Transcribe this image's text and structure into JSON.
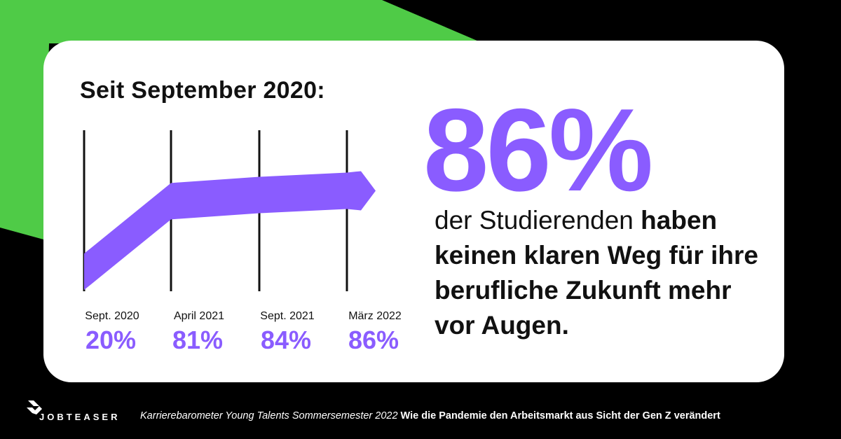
{
  "colors": {
    "background": "#000000",
    "green_accent": "#4fcb47",
    "purple_accent": "#8a5cff",
    "text_dark": "#111111",
    "gridline": "#111111"
  },
  "chart_data": {
    "type": "area",
    "title": "Seit September 2020:",
    "categories": [
      "Sept. 2020",
      "April 2021",
      "Sept. 2021",
      "März 2022"
    ],
    "value_labels": [
      "20%",
      "81%",
      "84%",
      "86%"
    ],
    "values": [
      20,
      81,
      84,
      86
    ],
    "unit": "%",
    "legend": "none",
    "grid": "vertical lines at each category"
  },
  "highlight": {
    "value": "86%",
    "text_regular": "der Studierenden ",
    "text_bold": "haben keinen klaren Weg für ihre berufliche Zukunft mehr vor Augen."
  },
  "footer": {
    "logo_text": "JOBTEASER",
    "source_title": "Karrierebarometer Young Talents Sommersemester 2022",
    "source_subtitle": " Wie die Pandemie den Arbeitsmarkt aus Sicht der Gen Z verändert"
  }
}
